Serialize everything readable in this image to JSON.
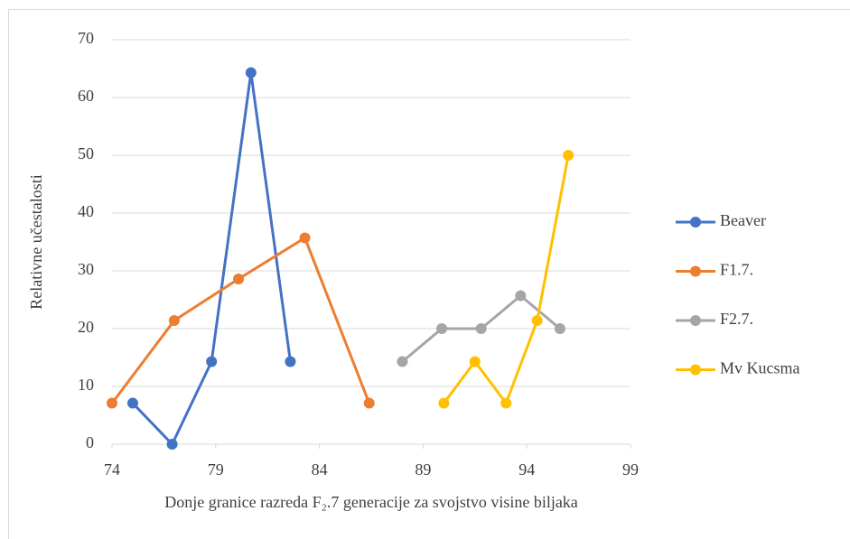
{
  "chart_data": {
    "type": "scatter-line",
    "xlabel": "Donje granice razreda F₂.7 generacije za svojstvo visine biljaka",
    "ylabel": "Relativne učestalosti",
    "xlim": [
      74,
      99
    ],
    "xticks": [
      74,
      79,
      84,
      89,
      94,
      99
    ],
    "ylim": [
      0,
      70
    ],
    "yticks": [
      0,
      10,
      20,
      30,
      40,
      50,
      60,
      70
    ],
    "grid": true,
    "legend": "right",
    "series": [
      {
        "name": "Beaver",
        "color": "#4472c4",
        "x": [
          75,
          76.9,
          78.8,
          80.7,
          82.6
        ],
        "values": [
          7.1,
          0,
          14.3,
          64.3,
          14.3
        ]
      },
      {
        "name": "F1.7.",
        "color": "#ed7d31",
        "x": [
          74,
          77,
          80.1,
          83.3,
          86.4
        ],
        "values": [
          7.1,
          21.4,
          28.6,
          35.7,
          7.1
        ]
      },
      {
        "name": "F2.7.",
        "color": "#a5a5a5",
        "x": [
          88,
          89.9,
          91.8,
          93.7,
          95.6
        ],
        "values": [
          14.3,
          20,
          20,
          25.7,
          20
        ]
      },
      {
        "name": "Mv Kucsma",
        "color": "#ffc000",
        "x": [
          90,
          91.5,
          93,
          94.5,
          96
        ],
        "values": [
          7.1,
          14.3,
          7.1,
          21.4,
          50
        ]
      }
    ]
  }
}
